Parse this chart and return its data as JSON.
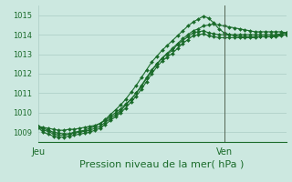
{
  "bg_color": "#cce8e0",
  "grid_color": "#aaccc4",
  "line_color": "#1a6b2a",
  "vline_color": "#556655",
  "ylim": [
    1008.5,
    1015.5
  ],
  "ylabel_ticks": [
    1009,
    1010,
    1011,
    1012,
    1013,
    1014,
    1015
  ],
  "xtick_labels": [
    "Jeu",
    "Ven"
  ],
  "xtick_positions": [
    0,
    36
  ],
  "vline_x": 36,
  "xlabel": "Pression niveau de la mer( hPa )",
  "series1": [
    1009.3,
    1009.1,
    1009.05,
    1008.9,
    1008.85,
    1008.85,
    1008.9,
    1008.95,
    1009.0,
    1009.05,
    1009.1,
    1009.2,
    1009.3,
    1009.5,
    1009.7,
    1009.9,
    1010.1,
    1010.4,
    1010.7,
    1011.0,
    1011.4,
    1011.8,
    1012.2,
    1012.5,
    1012.8,
    1013.0,
    1013.2,
    1013.5,
    1013.7,
    1013.9,
    1014.1,
    1014.15,
    1014.2,
    1014.1,
    1014.05,
    1014.0,
    1014.0,
    1014.0,
    1014.0,
    1014.0,
    1014.0,
    1014.0,
    1014.0,
    1014.0,
    1014.0,
    1014.0,
    1014.0,
    1014.05,
    1014.1
  ],
  "series2": [
    1009.25,
    1009.0,
    1008.9,
    1008.8,
    1008.75,
    1008.75,
    1008.8,
    1008.85,
    1008.9,
    1008.95,
    1009.0,
    1009.1,
    1009.2,
    1009.4,
    1009.6,
    1009.8,
    1010.0,
    1010.25,
    1010.55,
    1010.85,
    1011.2,
    1011.6,
    1012.0,
    1012.35,
    1012.65,
    1012.85,
    1013.05,
    1013.3,
    1013.55,
    1013.75,
    1013.95,
    1014.0,
    1014.05,
    1013.95,
    1013.9,
    1013.85,
    1013.85,
    1013.85,
    1013.85,
    1013.85,
    1013.85,
    1013.85,
    1013.85,
    1013.9,
    1013.9,
    1013.9,
    1013.95,
    1014.0,
    1014.0
  ],
  "series3": [
    1009.3,
    1009.25,
    1009.2,
    1009.15,
    1009.1,
    1009.1,
    1009.15,
    1009.15,
    1009.2,
    1009.25,
    1009.3,
    1009.35,
    1009.45,
    1009.6,
    1009.8,
    1010.0,
    1010.2,
    1010.45,
    1010.7,
    1011.0,
    1011.35,
    1011.75,
    1012.15,
    1012.5,
    1012.8,
    1013.05,
    1013.3,
    1013.55,
    1013.8,
    1014.0,
    1014.2,
    1014.3,
    1014.45,
    1014.5,
    1014.55,
    1014.5,
    1014.45,
    1014.4,
    1014.35,
    1014.3,
    1014.25,
    1014.2,
    1014.15,
    1014.15,
    1014.15,
    1014.15,
    1014.15,
    1014.15,
    1014.1
  ],
  "series4": [
    1009.3,
    1009.2,
    1009.1,
    1009.0,
    1008.95,
    1008.92,
    1008.92,
    1009.0,
    1009.05,
    1009.1,
    1009.2,
    1009.3,
    1009.45,
    1009.65,
    1009.9,
    1010.15,
    1010.4,
    1010.7,
    1011.05,
    1011.4,
    1011.8,
    1012.2,
    1012.6,
    1012.9,
    1013.2,
    1013.45,
    1013.7,
    1013.95,
    1014.2,
    1014.45,
    1014.65,
    1014.8,
    1014.95,
    1014.85,
    1014.6,
    1014.3,
    1014.1,
    1014.0,
    1013.95,
    1013.9,
    1013.9,
    1013.9,
    1013.9,
    1013.9,
    1013.9,
    1013.9,
    1013.9,
    1013.95,
    1014.0
  ],
  "ylabel_fontsize": 6,
  "xlabel_fontsize": 8,
  "xtick_fontsize": 7,
  "marker_size": 2.0,
  "line_width": 0.8
}
